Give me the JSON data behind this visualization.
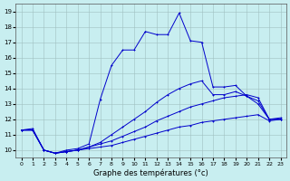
{
  "xlabel": "Graphe des températures (°c)",
  "bg_color": "#c8eef0",
  "line_color": "#0000cc",
  "ylim": [
    9.5,
    19.5
  ],
  "xlim": [
    -0.5,
    23.5
  ],
  "yticks": [
    10,
    11,
    12,
    13,
    14,
    15,
    16,
    17,
    18,
    19
  ],
  "xticks": [
    0,
    1,
    2,
    3,
    4,
    5,
    6,
    7,
    8,
    9,
    10,
    11,
    12,
    13,
    14,
    15,
    16,
    17,
    18,
    19,
    20,
    21,
    22,
    23
  ],
  "lines": [
    [
      11.3,
      11.4,
      10.0,
      9.8,
      9.9,
      10.0,
      10.1,
      10.2,
      10.3,
      10.5,
      10.7,
      10.9,
      11.1,
      11.3,
      11.5,
      11.6,
      11.8,
      11.9,
      12.0,
      12.1,
      12.2,
      12.3,
      11.9,
      12.0
    ],
    [
      11.3,
      11.3,
      10.0,
      9.8,
      9.9,
      10.0,
      10.2,
      10.4,
      10.6,
      10.9,
      11.2,
      11.5,
      11.9,
      12.2,
      12.5,
      12.8,
      13.0,
      13.2,
      13.4,
      13.5,
      13.6,
      13.4,
      12.0,
      12.1
    ],
    [
      11.3,
      11.3,
      10.0,
      9.8,
      9.9,
      10.0,
      10.2,
      10.5,
      11.0,
      11.5,
      12.0,
      12.5,
      13.1,
      13.6,
      14.0,
      14.3,
      14.5,
      13.6,
      13.6,
      13.8,
      13.5,
      13.2,
      12.0,
      12.0
    ],
    [
      11.3,
      11.3,
      10.0,
      9.8,
      10.0,
      10.1,
      10.4,
      13.3,
      15.5,
      16.5,
      16.5,
      17.7,
      17.5,
      17.5,
      18.9,
      17.1,
      17.0,
      14.1,
      14.1,
      14.2,
      13.5,
      13.0,
      12.0,
      12.0
    ]
  ]
}
